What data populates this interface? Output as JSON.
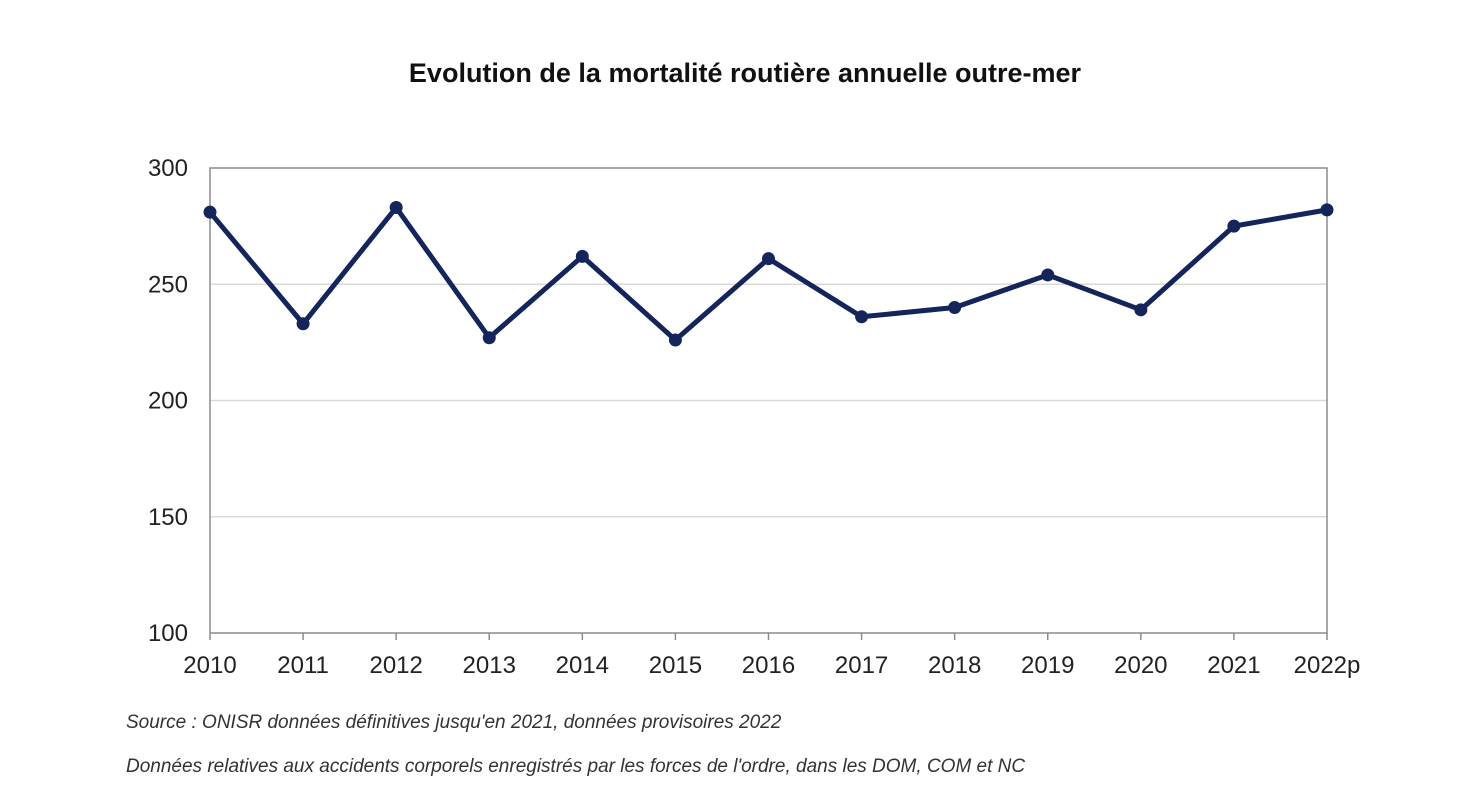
{
  "chart_data": {
    "type": "line",
    "title": "Evolution de la mortalité routière annuelle outre-mer",
    "xlabel": "",
    "ylabel": "",
    "categories": [
      "2010",
      "2011",
      "2012",
      "2013",
      "2014",
      "2015",
      "2016",
      "2017",
      "2018",
      "2019",
      "2020",
      "2021",
      "2022p"
    ],
    "series": [
      {
        "values": [
          281,
          233,
          283,
          227,
          262,
          226,
          261,
          236,
          240,
          254,
          239,
          275,
          282
        ],
        "color": "#14255c"
      }
    ],
    "ylim": [
      100,
      300
    ],
    "yticks": [
      100,
      150,
      200,
      250,
      300
    ],
    "grid": true,
    "legend": "none"
  },
  "notes": {
    "source": "Source : ONISR données définitives jusqu'en 2021, données provisoires 2022",
    "scope": "Données relatives aux accidents corporels enregistrés par les forces de l'ordre, dans les DOM, COM et NC"
  },
  "colors": {
    "line": "#14255c",
    "grid": "#d9d9d9",
    "axis": "#8c8c8c"
  }
}
